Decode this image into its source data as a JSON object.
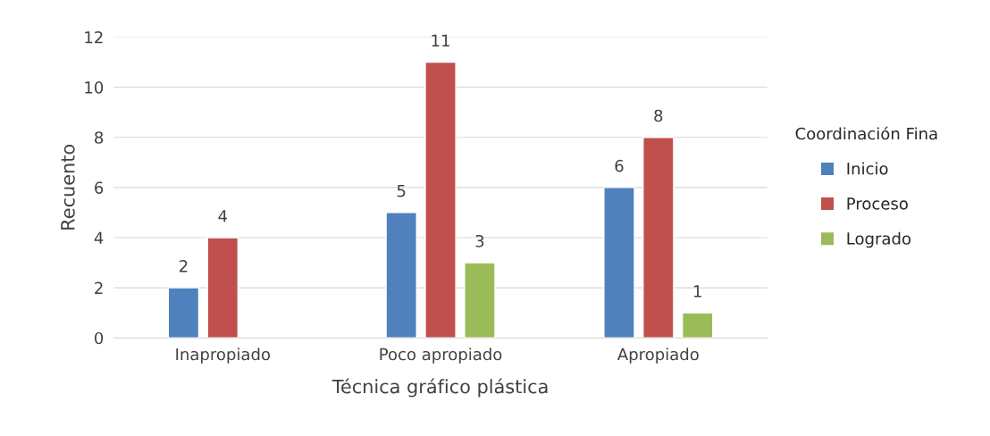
{
  "chart_data": {
    "type": "bar",
    "xlabel": "Técnica gráfico plástica",
    "ylabel": "Recuento",
    "legend_title": "Coordinación Fina",
    "categories": [
      "Inapropiado",
      "Poco apropiado",
      "Apropiado"
    ],
    "series": [
      {
        "name": "Inicio",
        "color": "#4f81bd",
        "values": [
          2,
          5,
          6
        ]
      },
      {
        "name": "Proceso",
        "color": "#c0504d",
        "values": [
          4,
          11,
          8
        ]
      },
      {
        "name": "Logrado",
        "color": "#9bbb59",
        "values": [
          null,
          3,
          1
        ]
      }
    ],
    "ylim": [
      0,
      12
    ],
    "yticks": [
      0,
      2,
      4,
      6,
      8,
      10,
      12
    ],
    "grid": "y",
    "legend": "right",
    "data_labels": true
  }
}
